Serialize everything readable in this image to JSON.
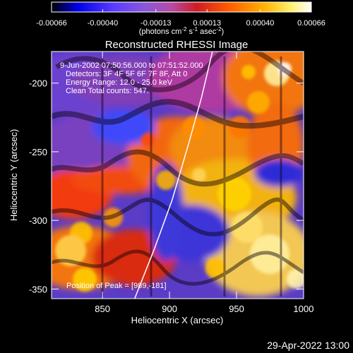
{
  "chart_data": {
    "type": "heatmap",
    "title": "Reconstructed RHESSI Image",
    "xlabel": "Heliocentric X (arcsec)",
    "ylabel": "Heliocentric Y (arcsec)",
    "xlim": [
      812,
      1000
    ],
    "ylim": [
      -357,
      -177
    ],
    "x_ticks": [
      "850",
      "900",
      "950",
      "1000"
    ],
    "y_ticks": [
      "-200",
      "-250",
      "-300",
      "-350"
    ],
    "colorbar": {
      "min": -0.00066,
      "max": 0.00066,
      "tick_labels": [
        "-0.00066",
        "-0.00040",
        "-0.00013",
        "0.00013",
        "0.00040",
        "0.00066"
      ],
      "unit_label": "(photons cm",
      "unit_sup1": "-2",
      "unit_mid": " s",
      "unit_sup2": "-1",
      "unit_mid2": " asec",
      "unit_sup3": "-2",
      "unit_end": ")"
    },
    "annotations": {
      "line1": "9-Jun-2002 07:50:56.000 to 07:51:52.000",
      "line2": "Detectors: 3F 4F 5F 6F 7F 8F, Att 0",
      "line3": "Energy Range: 12.0 - 25.0 keV",
      "line4": "Clean    Total counts: 547.",
      "peak": "Position of Peak = [989,-181]"
    },
    "limb_curve": [
      [
        874,
        -357
      ],
      [
        889,
        -320
      ],
      [
        902,
        -285
      ],
      [
        914,
        -245
      ],
      [
        924,
        -210
      ],
      [
        932,
        -177
      ]
    ],
    "peak_position": [
      989,
      -181
    ]
  },
  "footer": {
    "timestamp": "29-Apr-2022 13:00"
  }
}
